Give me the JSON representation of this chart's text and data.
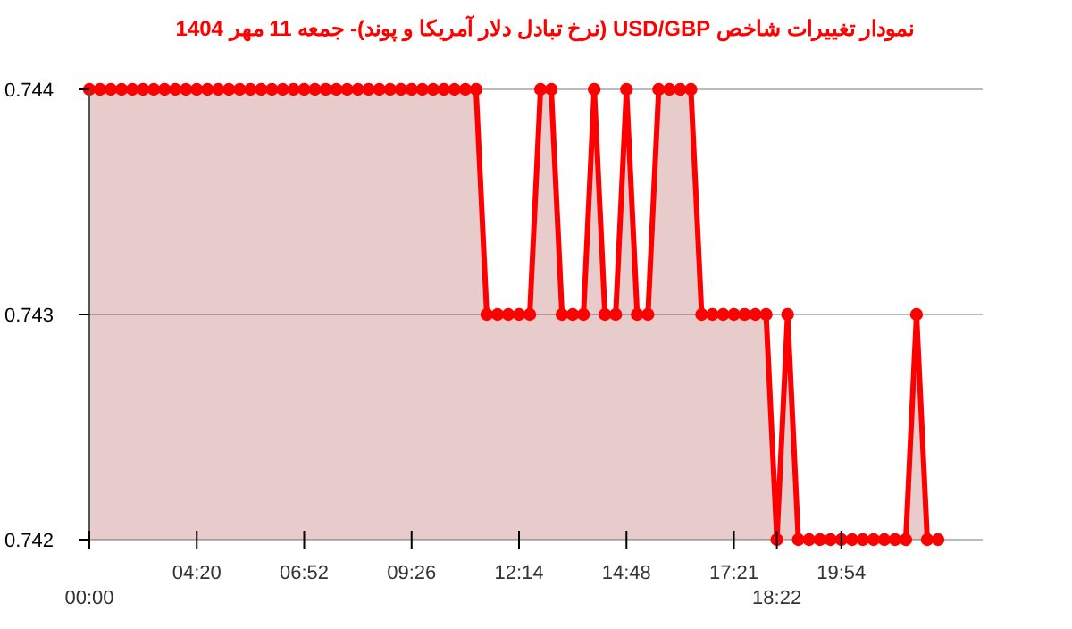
{
  "chart_data": {
    "type": "area",
    "title": "نمودار تغییرات شاخص USD/GBP (نرخ تبادل دلار آمریکا و پوند)- جمعه  11 مهر 1404",
    "categories": [
      "00:00",
      null,
      null,
      null,
      null,
      null,
      null,
      null,
      null,
      null,
      "04:20",
      null,
      null,
      null,
      null,
      null,
      null,
      null,
      null,
      null,
      "06:52",
      null,
      null,
      null,
      null,
      null,
      null,
      null,
      null,
      null,
      "09:26",
      null,
      null,
      null,
      null,
      null,
      null,
      null,
      null,
      null,
      "12:14",
      null,
      null,
      null,
      null,
      null,
      null,
      null,
      null,
      null,
      "14:48",
      null,
      null,
      null,
      null,
      null,
      null,
      null,
      null,
      null,
      "17:21",
      null,
      null,
      null,
      "18:22",
      null,
      null,
      null,
      null,
      null,
      "19:54",
      null,
      null,
      null,
      null,
      null,
      null,
      null,
      null,
      null
    ],
    "series": [
      {
        "color": "#ff0000",
        "values": [
          0.744,
          0.744,
          0.744,
          0.744,
          0.744,
          0.744,
          0.744,
          0.744,
          0.744,
          0.744,
          0.744,
          0.744,
          0.744,
          0.744,
          0.744,
          0.744,
          0.744,
          0.744,
          0.744,
          0.744,
          0.744,
          0.744,
          0.744,
          0.744,
          0.744,
          0.744,
          0.744,
          0.744,
          0.744,
          0.744,
          0.744,
          0.744,
          0.744,
          0.744,
          0.744,
          0.744,
          0.744,
          0.743,
          0.743,
          0.743,
          0.743,
          0.743,
          0.744,
          0.744,
          0.743,
          0.743,
          0.743,
          0.744,
          0.743,
          0.743,
          0.744,
          0.743,
          0.743,
          0.744,
          0.744,
          0.744,
          0.744,
          0.743,
          0.743,
          0.743,
          0.743,
          0.743,
          0.743,
          0.743,
          0.742,
          0.743,
          0.742,
          0.742,
          0.742,
          0.742,
          0.742,
          0.742,
          0.742,
          0.742,
          0.742,
          0.742,
          0.742,
          0.743,
          0.742,
          0.742
        ]
      }
    ],
    "ylim": [
      0.742,
      0.744
    ],
    "yticks": [
      0.742,
      0.743,
      0.744
    ],
    "grid": "y",
    "marker": "circle"
  }
}
